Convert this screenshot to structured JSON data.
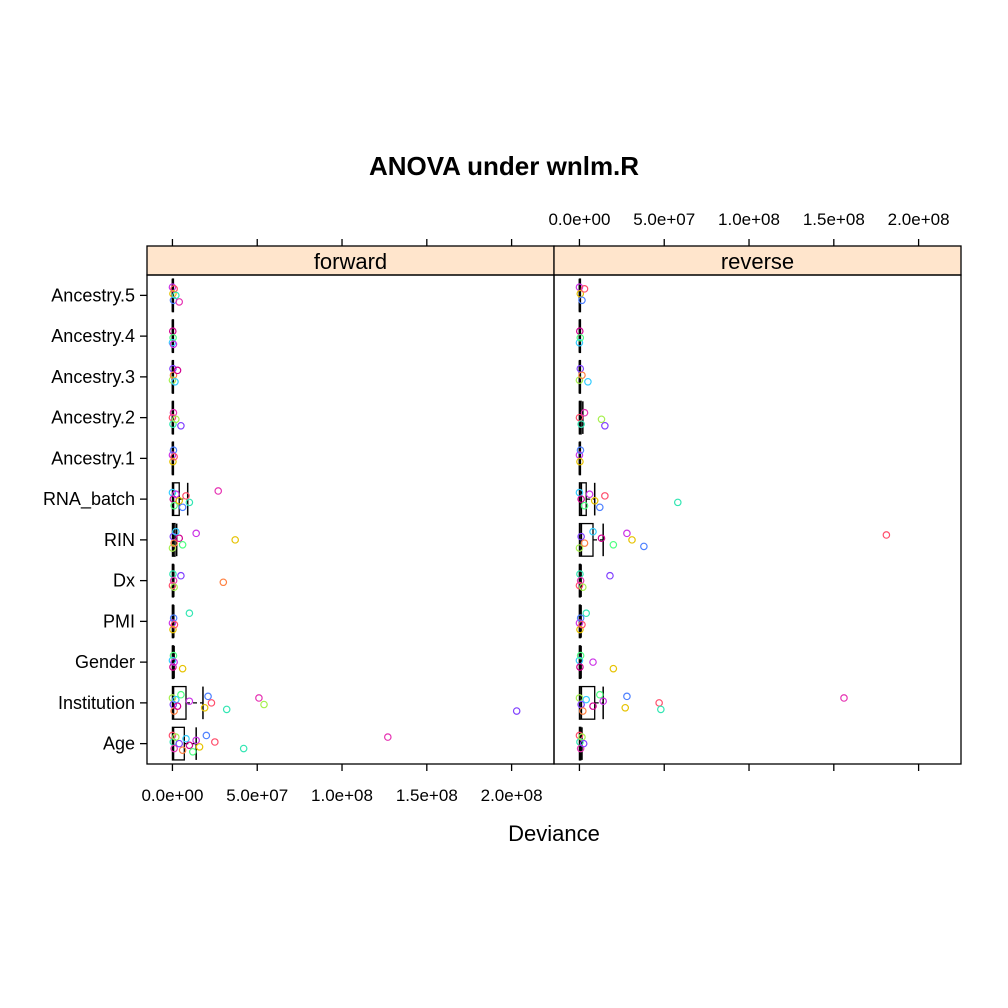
{
  "chart_data": {
    "type": "box-and-strip",
    "title": "ANOVA under wnlm.R",
    "xlabel": "Deviance",
    "ylabel": "",
    "xlim": [
      -15000000,
      225000000
    ],
    "x_ticks": [
      0,
      50000000,
      100000000,
      150000000,
      200000000
    ],
    "x_tick_labels": [
      "0.0e+00",
      "5.0e+07",
      "1.0e+08",
      "1.5e+08",
      "2.0e+08"
    ],
    "categories": [
      "Age",
      "Institution",
      "Gender",
      "PMI",
      "Dx",
      "RIN",
      "RNA_batch",
      "Ancestry.1",
      "Ancestry.2",
      "Ancestry.3",
      "Ancestry.4",
      "Ancestry.5"
    ],
    "panels": [
      {
        "name": "forward",
        "boxes": [
          {
            "category": "Age",
            "min": 0,
            "q1": 0,
            "median": 500000,
            "q3": 7000000,
            "max": 14000000
          },
          {
            "category": "Institution",
            "min": 0,
            "q1": 0,
            "median": 500000,
            "q3": 8000000,
            "max": 18000000
          },
          {
            "category": "Gender",
            "min": 0,
            "q1": 0,
            "median": 200000,
            "q3": 500000,
            "max": 1000000
          },
          {
            "category": "PMI",
            "min": 0,
            "q1": 0,
            "median": 200000,
            "q3": 400000,
            "max": 800000
          },
          {
            "category": "Dx",
            "min": 0,
            "q1": 0,
            "median": 200000,
            "q3": 400000,
            "max": 800000
          },
          {
            "category": "RIN",
            "min": 0,
            "q1": 0,
            "median": 500000,
            "q3": 1500000,
            "max": 2500000
          },
          {
            "category": "RNA_batch",
            "min": 0,
            "q1": 0,
            "median": 500000,
            "q3": 4000000,
            "max": 9000000
          },
          {
            "category": "Ancestry.1",
            "min": 0,
            "q1": 0,
            "median": 100000,
            "q3": 300000,
            "max": 500000
          },
          {
            "category": "Ancestry.2",
            "min": 0,
            "q1": 0,
            "median": 100000,
            "q3": 300000,
            "max": 500000
          },
          {
            "category": "Ancestry.3",
            "min": 0,
            "q1": 0,
            "median": 100000,
            "q3": 300000,
            "max": 500000
          },
          {
            "category": "Ancestry.4",
            "min": 0,
            "q1": 0,
            "median": 100000,
            "q3": 300000,
            "max": 500000
          },
          {
            "category": "Ancestry.5",
            "min": 0,
            "q1": 0,
            "median": 100000,
            "q3": 300000,
            "max": 500000
          }
        ],
        "points": [
          {
            "category": "Age",
            "values": [
              0,
              500000,
              1000000,
              2000000,
              4000000,
              6000000,
              8000000,
              10000000,
              12000000,
              14000000,
              16000000,
              20000000,
              25000000,
              42000000,
              127000000
            ]
          },
          {
            "category": "Institution",
            "values": [
              0,
              500000,
              1000000,
              2000000,
              3000000,
              5000000,
              10000000,
              19000000,
              21000000,
              23000000,
              32000000,
              51000000,
              54000000,
              203000000
            ]
          },
          {
            "category": "Gender",
            "values": [
              0,
              300000,
              600000,
              1000000,
              6000000
            ]
          },
          {
            "category": "PMI",
            "values": [
              0,
              300000,
              700000,
              1200000,
              10000000
            ]
          },
          {
            "category": "Dx",
            "values": [
              0,
              300000,
              700000,
              1000000,
              5000000,
              30000000
            ]
          },
          {
            "category": "RIN",
            "values": [
              0,
              500000,
              1000000,
              2000000,
              4000000,
              6000000,
              14000000,
              37000000
            ]
          },
          {
            "category": "RNA_batch",
            "values": [
              0,
              500000,
              1000000,
              2000000,
              4000000,
              6000000,
              8000000,
              10000000,
              27000000
            ]
          },
          {
            "category": "Ancestry.1",
            "values": [
              0,
              300000,
              600000,
              1000000
            ]
          },
          {
            "category": "Ancestry.2",
            "values": [
              0,
              300000,
              600000,
              2000000,
              5000000
            ]
          },
          {
            "category": "Ancestry.3",
            "values": [
              0,
              300000,
              600000,
              1500000,
              3000000
            ]
          },
          {
            "category": "Ancestry.4",
            "values": [
              0,
              200000,
              400000,
              600000
            ]
          },
          {
            "category": "Ancestry.5",
            "values": [
              0,
              300000,
              600000,
              1000000,
              2000000,
              4000000
            ]
          }
        ]
      },
      {
        "name": "reverse",
        "boxes": [
          {
            "category": "Age",
            "min": 0,
            "q1": 0,
            "median": 300000,
            "q3": 800000,
            "max": 1500000
          },
          {
            "category": "Institution",
            "min": 0,
            "q1": 0,
            "median": 1000000,
            "q3": 9000000,
            "max": 14000000
          },
          {
            "category": "Gender",
            "min": 0,
            "q1": 0,
            "median": 200000,
            "q3": 500000,
            "max": 1000000
          },
          {
            "category": "PMI",
            "min": 0,
            "q1": 0,
            "median": 200000,
            "q3": 500000,
            "max": 1000000
          },
          {
            "category": "Dx",
            "min": 0,
            "q1": 0,
            "median": 200000,
            "q3": 500000,
            "max": 1000000
          },
          {
            "category": "RIN",
            "min": 0,
            "q1": 0,
            "median": 1000000,
            "q3": 8000000,
            "max": 14000000
          },
          {
            "category": "RNA_batch",
            "min": 0,
            "q1": 0,
            "median": 1000000,
            "q3": 4000000,
            "max": 9000000
          },
          {
            "category": "Ancestry.1",
            "min": 0,
            "q1": 0,
            "median": 100000,
            "q3": 300000,
            "max": 500000
          },
          {
            "category": "Ancestry.2",
            "min": 0,
            "q1": 0,
            "median": 200000,
            "q3": 1000000,
            "max": 2000000
          },
          {
            "category": "Ancestry.3",
            "min": 0,
            "q1": 0,
            "median": 100000,
            "q3": 300000,
            "max": 500000
          },
          {
            "category": "Ancestry.4",
            "min": 0,
            "q1": 0,
            "median": 100000,
            "q3": 300000,
            "max": 500000
          },
          {
            "category": "Ancestry.5",
            "min": 0,
            "q1": 0,
            "median": 100000,
            "q3": 300000,
            "max": 500000
          }
        ],
        "points": [
          {
            "category": "Age",
            "values": [
              0,
              300000,
              700000,
              1500000,
              2500000
            ]
          },
          {
            "category": "Institution",
            "values": [
              0,
              1000000,
              2000000,
              4000000,
              8000000,
              12000000,
              14000000,
              27000000,
              28000000,
              47000000,
              48000000,
              156000000
            ]
          },
          {
            "category": "Gender",
            "values": [
              0,
              300000,
              700000,
              8000000,
              20000000
            ]
          },
          {
            "category": "PMI",
            "values": [
              0,
              300000,
              700000,
              1500000,
              4000000
            ]
          },
          {
            "category": "Dx",
            "values": [
              0,
              300000,
              700000,
              2000000,
              18000000
            ]
          },
          {
            "category": "RIN",
            "values": [
              0,
              1000000,
              3000000,
              8000000,
              13000000,
              20000000,
              28000000,
              31000000,
              38000000,
              181000000
            ]
          },
          {
            "category": "RNA_batch",
            "values": [
              0,
              1000000,
              3000000,
              6000000,
              9000000,
              12000000,
              15000000,
              58000000
            ]
          },
          {
            "category": "Ancestry.1",
            "values": [
              0,
              300000,
              600000
            ]
          },
          {
            "category": "Ancestry.2",
            "values": [
              0,
              1000000,
              3000000,
              13000000,
              15000000
            ]
          },
          {
            "category": "Ancestry.3",
            "values": [
              0,
              500000,
              1500000,
              5000000
            ]
          },
          {
            "category": "Ancestry.4",
            "values": [
              0,
              200000,
              500000
            ]
          },
          {
            "category": "Ancestry.5",
            "values": [
              0,
              500000,
              1500000,
              3000000
            ]
          }
        ]
      }
    ],
    "point_colors": [
      "#FF4D6B",
      "#FF8040",
      "#E6C200",
      "#A6F04D",
      "#4DFF80",
      "#33E6B3",
      "#33CCFF",
      "#4D80FF",
      "#8040FF",
      "#CC33E6",
      "#E633B3",
      "#D1008F"
    ],
    "strip_color": "#FFE5CC",
    "box_color": "#000000",
    "grid": false,
    "legend": "none"
  }
}
